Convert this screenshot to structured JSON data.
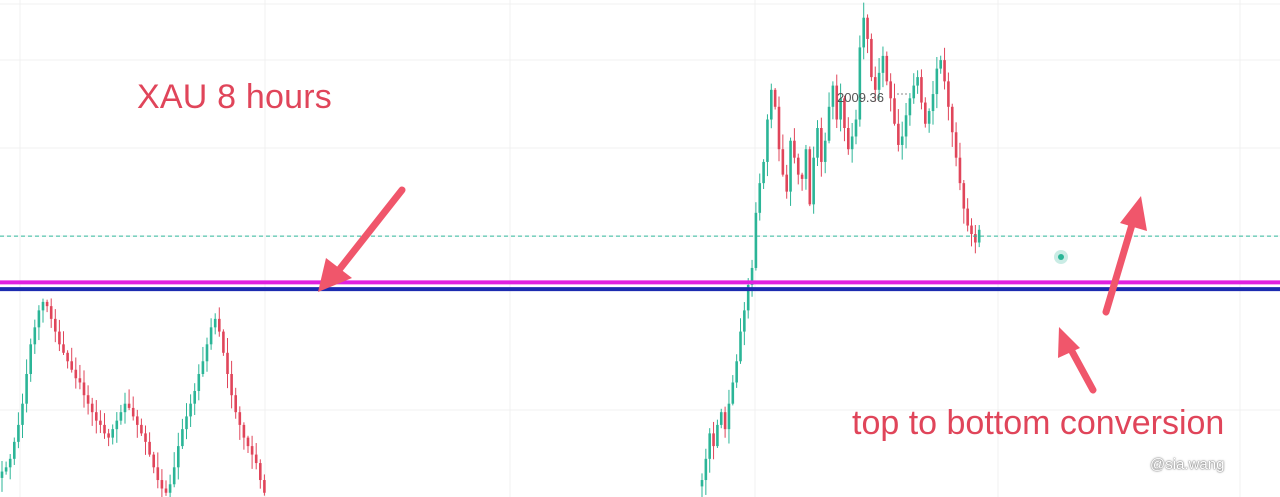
{
  "chart_data": {
    "type": "candlestick",
    "title": "XAU 8 hours",
    "annotation": "top to bottom conversion",
    "peak_label": "2009.36",
    "watermark": "@sia.wang",
    "ylim": [
      1896,
      2012
    ],
    "horizontal_levels": [
      {
        "value": 1957.5,
        "style": "dashed",
        "color": "#2fb89a"
      },
      {
        "value": 1946.6,
        "style": "solid",
        "color": "#e020e0"
      },
      {
        "value": 1945.0,
        "style": "solid",
        "color": "#1c2bb0"
      }
    ],
    "colors": {
      "up": "#2bb597",
      "down": "#e0455a",
      "annotation": "#e0455a"
    },
    "segments": [
      {
        "name": "left",
        "start": 2,
        "step": 4.1,
        "seed": 11,
        "closes": [
          1902,
          1903,
          1905,
          1909,
          1913,
          1918,
          1925,
          1932,
          1936,
          1940,
          1942,
          1941,
          1938,
          1935,
          1932,
          1930,
          1928,
          1926,
          1924,
          1923,
          1920,
          1918,
          1916,
          1914,
          1913,
          1911,
          1910,
          1912,
          1914,
          1916,
          1918,
          1917,
          1915,
          1913,
          1911,
          1909,
          1906,
          1903,
          1900,
          1898,
          1897,
          1899,
          1903,
          1908,
          1912,
          1915,
          1918,
          1921,
          1925,
          1928,
          1932,
          1936,
          1938,
          1935,
          1930,
          1925,
          1920,
          1916,
          1913,
          1910,
          1908,
          1906,
          1904,
          1900,
          1897
        ]
      },
      {
        "name": "right",
        "start": 702,
        "step": 3.85,
        "seed": 29,
        "closes": [
          1900,
          1905,
          1911,
          1908,
          1913,
          1916,
          1912,
          1918,
          1923,
          1928,
          1935,
          1940,
          1946,
          1950,
          1963,
          1970,
          1975,
          1985,
          1992,
          1988,
          1978,
          1972,
          1968,
          1980,
          1976,
          1972,
          1971,
          1978,
          1965,
          1976,
          1983,
          1975,
          1980,
          1988,
          1993,
          1985,
          1990,
          1983,
          1978,
          1981,
          1985,
          2002,
          2009,
          2004,
          1995,
          1992,
          1996,
          2000,
          1994,
          1990,
          1984,
          1979,
          1981,
          1986,
          1990,
          1993,
          1995,
          1989,
          1984,
          1987,
          1991,
          1997,
          1999,
          1994,
          1988,
          1982,
          1976,
          1970,
          1964,
          1960,
          1958,
          1956,
          1959
        ]
      }
    ]
  }
}
